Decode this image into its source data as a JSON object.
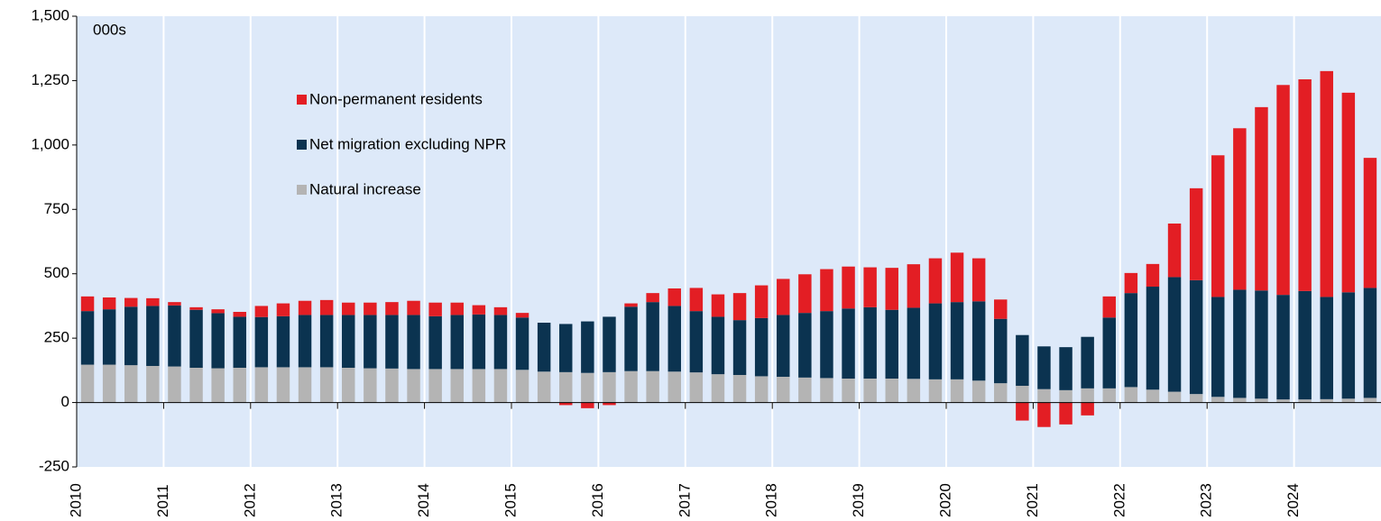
{
  "chart_data": {
    "type": "stacked_bar",
    "annotation": "000s",
    "categories": [
      "2010",
      null,
      null,
      null,
      "2011",
      null,
      null,
      null,
      "2012",
      null,
      null,
      null,
      "2013",
      null,
      null,
      null,
      "2014",
      null,
      null,
      null,
      "2015",
      null,
      null,
      null,
      "2016",
      null,
      null,
      null,
      "2017",
      null,
      null,
      null,
      "2018",
      null,
      null,
      null,
      "2019",
      null,
      null,
      null,
      "2020",
      null,
      null,
      null,
      "2021",
      null,
      null,
      null,
      "2022",
      null,
      null,
      null,
      "2023",
      null,
      null,
      null,
      "2024",
      null,
      null,
      null
    ],
    "series": [
      {
        "name": "Natural increase",
        "color": "#b4b4b4",
        "values": [
          147,
          147,
          145,
          142,
          140,
          135,
          133,
          135,
          137,
          137,
          137,
          137,
          135,
          133,
          132,
          130,
          130,
          130,
          130,
          130,
          127,
          120,
          118,
          115,
          118,
          122,
          122,
          120,
          117,
          110,
          107,
          102,
          100,
          97,
          95,
          93,
          93,
          93,
          92,
          90,
          90,
          85,
          75,
          65,
          52,
          48,
          55,
          55,
          60,
          50,
          42,
          33,
          22,
          18,
          15,
          12,
          12,
          13,
          15,
          18
        ]
      },
      {
        "name": "Net migration excluding NPR",
        "color": "#0b3350",
        "values": [
          208,
          215,
          227,
          233,
          237,
          225,
          214,
          198,
          195,
          198,
          203,
          203,
          205,
          207,
          208,
          210,
          205,
          210,
          212,
          210,
          203,
          190,
          187,
          200,
          215,
          250,
          268,
          255,
          238,
          223,
          213,
          226,
          240,
          251,
          260,
          272,
          277,
          267,
          276,
          295,
          300,
          308,
          250,
          197,
          166,
          167,
          200,
          275,
          365,
          400,
          445,
          442,
          388,
          420,
          420,
          406,
          421,
          397,
          413,
          427
        ]
      },
      {
        "name": "Non-permanent residents",
        "color": "#e31e24",
        "values": [
          57,
          46,
          34,
          30,
          13,
          10,
          15,
          19,
          43,
          50,
          55,
          58,
          48,
          48,
          50,
          55,
          53,
          48,
          36,
          30,
          18,
          0,
          -10,
          -22,
          -10,
          13,
          35,
          68,
          90,
          87,
          105,
          127,
          140,
          150,
          163,
          163,
          155,
          163,
          169,
          175,
          192,
          167,
          75,
          -70,
          -95,
          -85,
          -50,
          82,
          78,
          88,
          208,
          357,
          550,
          627,
          712,
          815,
          822,
          877,
          775,
          505
        ]
      }
    ],
    "ylim": [
      -250,
      1500
    ],
    "yticks": [
      -250,
      0,
      250,
      500,
      750,
      {
        "value": 1000,
        "label": "1,000"
      },
      {
        "value": 1250,
        "label": "1,250"
      },
      {
        "value": 1500,
        "label": "1,500"
      }
    ],
    "background": "#dde9f9"
  }
}
